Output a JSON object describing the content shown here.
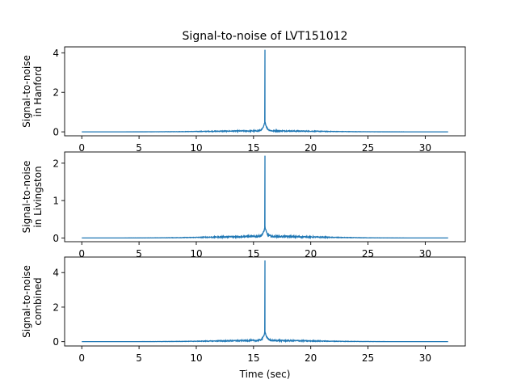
{
  "chart_data": {
    "type": "line",
    "title": "Signal-to-noise of LVT151012",
    "xlabel": "Time (sec)",
    "xlim": [
      -1.5,
      33.5
    ],
    "xticks": [
      0,
      5,
      10,
      15,
      20,
      25,
      30
    ],
    "line_color": "#1f77b4",
    "event_time": 16.0,
    "duration": 32.0,
    "panels": [
      {
        "name": "Hanford",
        "ylabel_lines": [
          "Signal-to-noise",
          "in Hanford"
        ],
        "ylim": [
          -0.2,
          4.3
        ],
        "yticks": [
          0,
          2,
          4
        ],
        "peak": 4.15,
        "noise_level": 0.06
      },
      {
        "name": "Livingston",
        "ylabel_lines": [
          "Signal-to-noise",
          "in Livingston"
        ],
        "ylim": [
          -0.1,
          2.3
        ],
        "yticks": [
          0,
          1,
          2
        ],
        "peak": 2.2,
        "noise_level": 0.05
      },
      {
        "name": "combined",
        "ylabel_lines": [
          "Signal-to-noise",
          "combined"
        ],
        "ylim": [
          -0.25,
          4.9
        ],
        "yticks": [
          0,
          2,
          4
        ],
        "peak": 4.7,
        "noise_level": 0.08
      }
    ]
  }
}
